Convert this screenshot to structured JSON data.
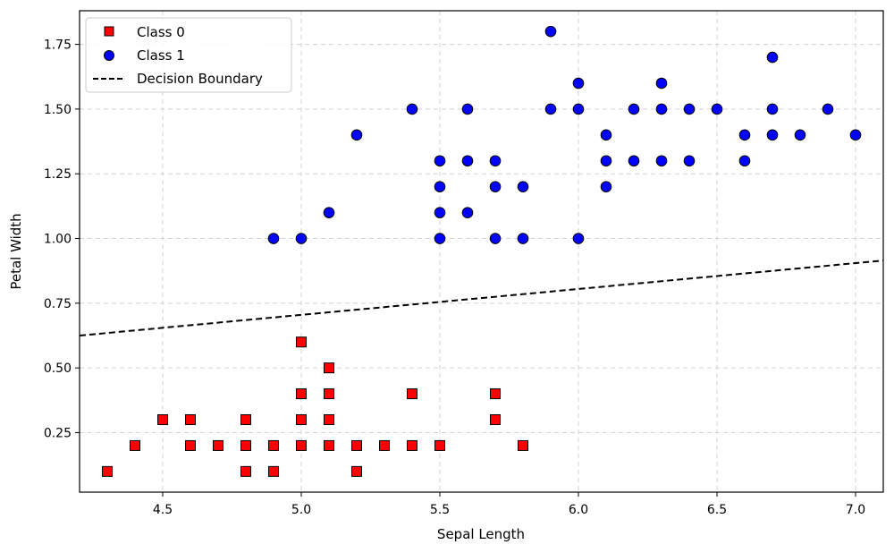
{
  "chart_data": {
    "type": "scatter",
    "title": "",
    "xlabel": "Sepal Length",
    "ylabel": "Petal Width",
    "xlim": [
      4.2,
      7.1
    ],
    "ylim": [
      0.02,
      1.88
    ],
    "xticks": [
      "4.5",
      "5.0",
      "5.5",
      "6.0",
      "6.5",
      "7.0"
    ],
    "yticks": [
      "0.25",
      "0.50",
      "0.75",
      "1.00",
      "1.25",
      "1.50",
      "1.75"
    ],
    "grid": true,
    "legend_position": "top-left",
    "series": [
      {
        "name": "Class 0",
        "marker": "square",
        "color": "#ff0000",
        "points": [
          [
            4.3,
            0.1
          ],
          [
            4.4,
            0.2
          ],
          [
            4.5,
            0.3
          ],
          [
            4.6,
            0.2
          ],
          [
            4.6,
            0.3
          ],
          [
            4.7,
            0.2
          ],
          [
            4.8,
            0.1
          ],
          [
            4.8,
            0.2
          ],
          [
            4.8,
            0.3
          ],
          [
            4.9,
            0.1
          ],
          [
            4.9,
            0.2
          ],
          [
            5.0,
            0.2
          ],
          [
            5.0,
            0.3
          ],
          [
            5.0,
            0.4
          ],
          [
            5.0,
            0.6
          ],
          [
            5.1,
            0.2
          ],
          [
            5.1,
            0.3
          ],
          [
            5.1,
            0.4
          ],
          [
            5.1,
            0.5
          ],
          [
            5.2,
            0.1
          ],
          [
            5.2,
            0.2
          ],
          [
            5.3,
            0.2
          ],
          [
            5.4,
            0.2
          ],
          [
            5.4,
            0.4
          ],
          [
            5.5,
            0.2
          ],
          [
            5.7,
            0.3
          ],
          [
            5.7,
            0.4
          ],
          [
            5.8,
            0.2
          ]
        ]
      },
      {
        "name": "Class 1",
        "marker": "circle",
        "color": "#0000ff",
        "points": [
          [
            4.9,
            1.0
          ],
          [
            5.0,
            1.0
          ],
          [
            5.1,
            1.1
          ],
          [
            5.2,
            1.4
          ],
          [
            5.4,
            1.5
          ],
          [
            5.5,
            1.0
          ],
          [
            5.5,
            1.1
          ],
          [
            5.5,
            1.2
          ],
          [
            5.5,
            1.3
          ],
          [
            5.6,
            1.1
          ],
          [
            5.6,
            1.3
          ],
          [
            5.6,
            1.5
          ],
          [
            5.7,
            1.0
          ],
          [
            5.7,
            1.2
          ],
          [
            5.7,
            1.3
          ],
          [
            5.8,
            1.0
          ],
          [
            5.8,
            1.2
          ],
          [
            5.9,
            1.5
          ],
          [
            5.9,
            1.8
          ],
          [
            6.0,
            1.0
          ],
          [
            6.0,
            1.5
          ],
          [
            6.0,
            1.6
          ],
          [
            6.1,
            1.2
          ],
          [
            6.1,
            1.3
          ],
          [
            6.1,
            1.4
          ],
          [
            6.2,
            1.3
          ],
          [
            6.2,
            1.5
          ],
          [
            6.3,
            1.3
          ],
          [
            6.3,
            1.5
          ],
          [
            6.3,
            1.6
          ],
          [
            6.4,
            1.3
          ],
          [
            6.4,
            1.5
          ],
          [
            6.5,
            1.5
          ],
          [
            6.6,
            1.3
          ],
          [
            6.6,
            1.4
          ],
          [
            6.7,
            1.4
          ],
          [
            6.7,
            1.5
          ],
          [
            6.7,
            1.7
          ],
          [
            6.8,
            1.4
          ],
          [
            6.9,
            1.5
          ],
          [
            7.0,
            1.4
          ]
        ]
      }
    ],
    "decision_boundary": {
      "name": "Decision Boundary",
      "style": "dashed",
      "color": "#000000",
      "points": [
        [
          4.2,
          0.625
        ],
        [
          7.1,
          0.915
        ]
      ]
    }
  }
}
